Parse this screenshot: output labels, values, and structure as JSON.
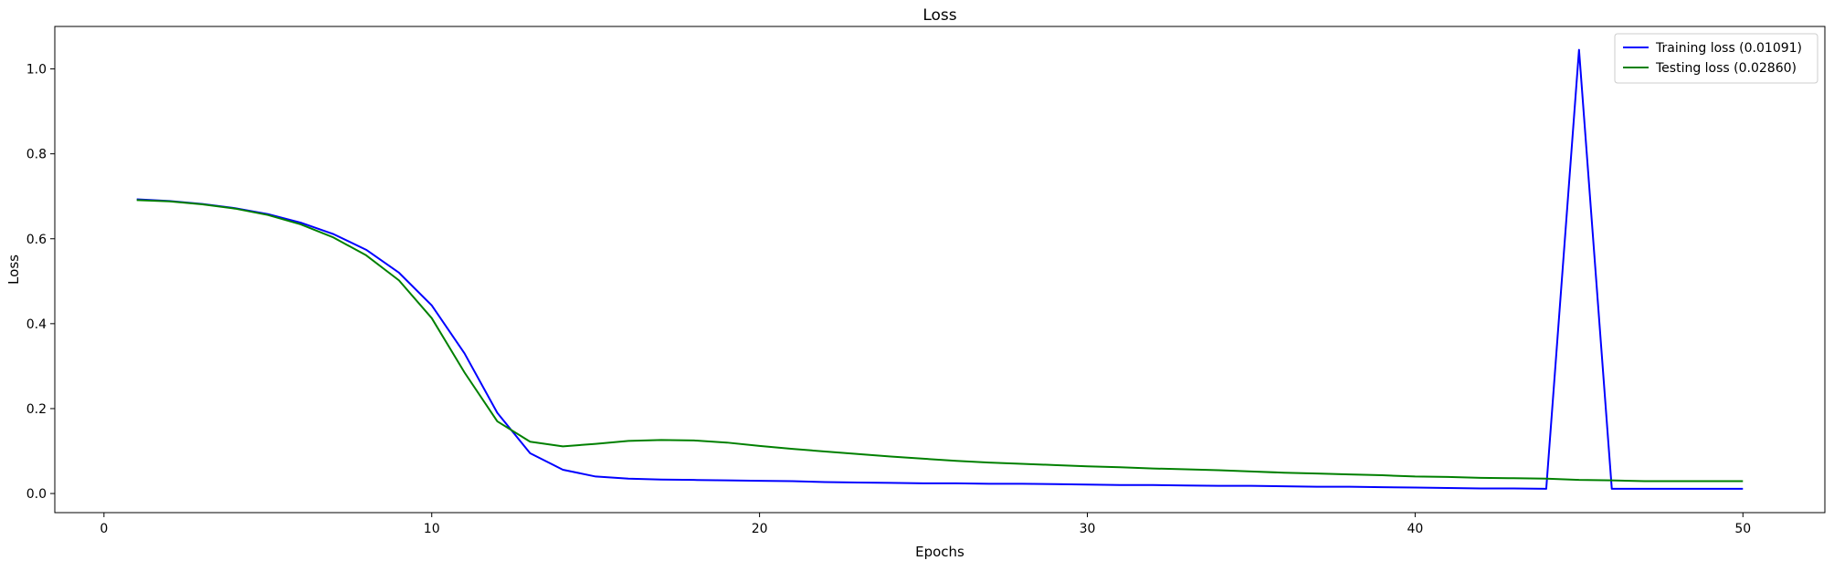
{
  "chart_data": {
    "type": "line",
    "title": "Loss",
    "xlabel": "Epochs",
    "ylabel": "Loss",
    "xlim": [
      -1.5,
      52.5
    ],
    "ylim": [
      -0.045,
      1.1
    ],
    "x_ticks": [
      0,
      10,
      20,
      30,
      40,
      50
    ],
    "y_ticks": [
      0.0,
      0.2,
      0.4,
      0.6,
      0.8,
      1.0
    ],
    "x_tick_labels": [
      "0",
      "10",
      "20",
      "30",
      "40",
      "50"
    ],
    "y_tick_labels": [
      "0.0",
      "0.2",
      "0.4",
      "0.6",
      "0.8",
      "1.0"
    ],
    "grid": false,
    "legend_position": "top-right",
    "x": [
      1,
      2,
      3,
      4,
      5,
      6,
      7,
      8,
      9,
      10,
      11,
      12,
      13,
      14,
      15,
      16,
      17,
      18,
      19,
      20,
      21,
      22,
      23,
      24,
      25,
      26,
      27,
      28,
      29,
      30,
      31,
      32,
      33,
      34,
      35,
      36,
      37,
      38,
      39,
      40,
      41,
      42,
      43,
      44,
      45,
      46,
      47,
      48,
      49,
      50
    ],
    "series": [
      {
        "name": "Training loss (0.01091)",
        "color": "#0000ff",
        "values": [
          0.693,
          0.689,
          0.682,
          0.672,
          0.658,
          0.638,
          0.611,
          0.574,
          0.52,
          0.443,
          0.33,
          0.19,
          0.095,
          0.056,
          0.04,
          0.035,
          0.033,
          0.032,
          0.031,
          0.03,
          0.029,
          0.027,
          0.026,
          0.025,
          0.024,
          0.024,
          0.023,
          0.023,
          0.022,
          0.021,
          0.02,
          0.02,
          0.019,
          0.018,
          0.018,
          0.017,
          0.016,
          0.016,
          0.015,
          0.014,
          0.013,
          0.012,
          0.012,
          0.011,
          1.045,
          0.011,
          0.011,
          0.011,
          0.011,
          0.011
        ]
      },
      {
        "name": "Testing loss (0.02860)",
        "color": "#008000",
        "values": [
          0.691,
          0.688,
          0.681,
          0.671,
          0.656,
          0.634,
          0.603,
          0.561,
          0.502,
          0.413,
          0.285,
          0.17,
          0.122,
          0.111,
          0.117,
          0.124,
          0.126,
          0.125,
          0.12,
          0.112,
          0.105,
          0.099,
          0.093,
          0.087,
          0.082,
          0.077,
          0.073,
          0.07,
          0.067,
          0.064,
          0.062,
          0.059,
          0.057,
          0.055,
          0.052,
          0.049,
          0.047,
          0.045,
          0.043,
          0.04,
          0.039,
          0.037,
          0.036,
          0.035,
          0.032,
          0.031,
          0.029,
          0.029,
          0.029,
          0.029
        ]
      }
    ]
  }
}
